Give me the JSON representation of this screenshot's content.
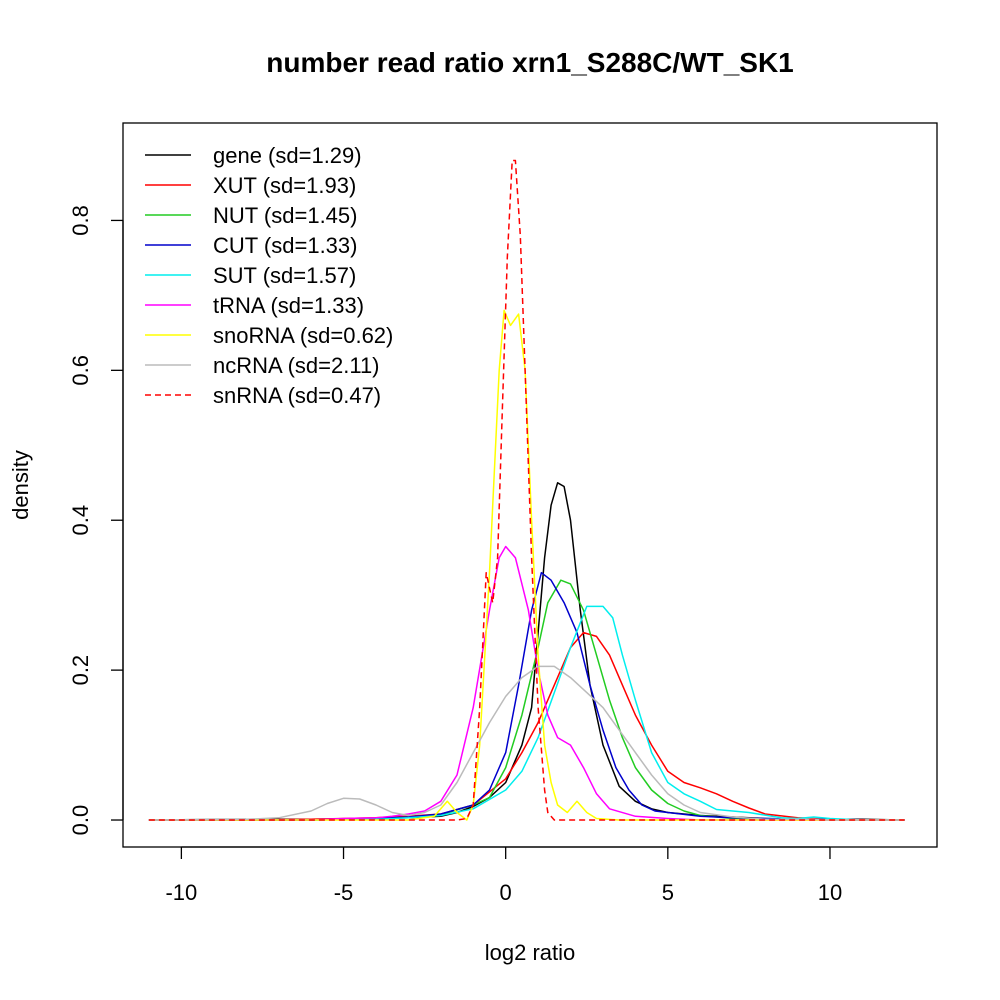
{
  "chart_data": {
    "type": "line",
    "title": "number read ratio xrn1_S288C/WT_SK1",
    "xlabel": "log2 ratio",
    "ylabel": "density",
    "xlim": [
      -11.8,
      13.3
    ],
    "ylim": [
      -0.036,
      0.93
    ],
    "xticks": [
      -10,
      -5,
      0,
      5,
      10
    ],
    "xtick_labels": [
      "-10",
      "-5",
      "0",
      "5",
      "10"
    ],
    "yticks": [
      0.0,
      0.2,
      0.4,
      0.6,
      0.8
    ],
    "ytick_labels": [
      "0.0",
      "0.2",
      "0.4",
      "0.6",
      "0.8"
    ],
    "grid": false,
    "legend_position": "top-left",
    "series": [
      {
        "name": "gene (sd=1.29)",
        "color": "#000000",
        "dash": false,
        "points": [
          [
            -11,
            0
          ],
          [
            -8,
            0.001
          ],
          [
            -6,
            0.001
          ],
          [
            -4,
            0.002
          ],
          [
            -3,
            0.003
          ],
          [
            -2,
            0.005
          ],
          [
            -1.5,
            0.01
          ],
          [
            -1,
            0.018
          ],
          [
            -0.5,
            0.03
          ],
          [
            0,
            0.05
          ],
          [
            0.5,
            0.1
          ],
          [
            0.8,
            0.15
          ],
          [
            1.0,
            0.25
          ],
          [
            1.2,
            0.35
          ],
          [
            1.4,
            0.42
          ],
          [
            1.6,
            0.45
          ],
          [
            1.8,
            0.445
          ],
          [
            2.0,
            0.4
          ],
          [
            2.3,
            0.28
          ],
          [
            2.6,
            0.18
          ],
          [
            3.0,
            0.1
          ],
          [
            3.5,
            0.045
          ],
          [
            4.0,
            0.025
          ],
          [
            4.5,
            0.015
          ],
          [
            5.0,
            0.01
          ],
          [
            6,
            0.006
          ],
          [
            7,
            0.004
          ],
          [
            8,
            0.002
          ],
          [
            9,
            0.001
          ],
          [
            11,
            0.001
          ],
          [
            12.3,
            0
          ]
        ]
      },
      {
        "name": "XUT (sd=1.93)",
        "color": "#ff0000",
        "dash": false,
        "points": [
          [
            -11,
            0
          ],
          [
            -8,
            0
          ],
          [
            -6,
            0.001
          ],
          [
            -4,
            0.003
          ],
          [
            -3,
            0.005
          ],
          [
            -2,
            0.008
          ],
          [
            -1,
            0.02
          ],
          [
            0,
            0.055
          ],
          [
            0.5,
            0.09
          ],
          [
            1.0,
            0.13
          ],
          [
            1.5,
            0.18
          ],
          [
            2.0,
            0.23
          ],
          [
            2.4,
            0.25
          ],
          [
            2.8,
            0.245
          ],
          [
            3.2,
            0.22
          ],
          [
            3.6,
            0.18
          ],
          [
            4.0,
            0.14
          ],
          [
            4.5,
            0.1
          ],
          [
            5.0,
            0.065
          ],
          [
            5.5,
            0.05
          ],
          [
            6.0,
            0.043
          ],
          [
            6.5,
            0.035
          ],
          [
            7.0,
            0.025
          ],
          [
            7.5,
            0.016
          ],
          [
            8.0,
            0.008
          ],
          [
            9,
            0.003
          ],
          [
            10,
            0.001
          ],
          [
            11,
            0
          ],
          [
            12.3,
            0
          ]
        ]
      },
      {
        "name": "NUT (sd=1.45)",
        "color": "#22cc22",
        "dash": false,
        "points": [
          [
            -11,
            0
          ],
          [
            -6,
            0
          ],
          [
            -4,
            0.002
          ],
          [
            -3,
            0.004
          ],
          [
            -2,
            0.007
          ],
          [
            -1,
            0.02
          ],
          [
            -0.5,
            0.03
          ],
          [
            0,
            0.07
          ],
          [
            0.5,
            0.14
          ],
          [
            1.0,
            0.23
          ],
          [
            1.3,
            0.29
          ],
          [
            1.7,
            0.32
          ],
          [
            2.0,
            0.315
          ],
          [
            2.4,
            0.28
          ],
          [
            2.8,
            0.22
          ],
          [
            3.2,
            0.16
          ],
          [
            3.6,
            0.11
          ],
          [
            4.0,
            0.07
          ],
          [
            4.5,
            0.04
          ],
          [
            5.0,
            0.022
          ],
          [
            5.5,
            0.012
          ],
          [
            6,
            0.006
          ],
          [
            7,
            0.002
          ],
          [
            8,
            0.001
          ],
          [
            9,
            0.001
          ],
          [
            10,
            0
          ],
          [
            12.3,
            0
          ]
        ]
      },
      {
        "name": "CUT (sd=1.33)",
        "color": "#0000cc",
        "dash": false,
        "points": [
          [
            -11,
            0
          ],
          [
            -6,
            0
          ],
          [
            -4,
            0.002
          ],
          [
            -3,
            0.004
          ],
          [
            -2,
            0.008
          ],
          [
            -1,
            0.02
          ],
          [
            -0.5,
            0.04
          ],
          [
            0,
            0.09
          ],
          [
            0.4,
            0.18
          ],
          [
            0.8,
            0.28
          ],
          [
            1.1,
            0.33
          ],
          [
            1.4,
            0.32
          ],
          [
            1.8,
            0.29
          ],
          [
            2.2,
            0.25
          ],
          [
            2.6,
            0.18
          ],
          [
            3.0,
            0.12
          ],
          [
            3.4,
            0.07
          ],
          [
            3.8,
            0.04
          ],
          [
            4.2,
            0.02
          ],
          [
            4.6,
            0.012
          ],
          [
            5.0,
            0.01
          ],
          [
            6,
            0.005
          ],
          [
            7,
            0.003
          ],
          [
            8,
            0.002
          ],
          [
            9,
            0.001
          ],
          [
            12.3,
            0
          ]
        ]
      },
      {
        "name": "SUT (sd=1.57)",
        "color": "#00eeee",
        "dash": false,
        "points": [
          [
            -11,
            0
          ],
          [
            -6,
            0
          ],
          [
            -4,
            0.001
          ],
          [
            -3,
            0.003
          ],
          [
            -2,
            0.006
          ],
          [
            -1,
            0.015
          ],
          [
            0,
            0.04
          ],
          [
            0.5,
            0.065
          ],
          [
            1.0,
            0.11
          ],
          [
            1.5,
            0.17
          ],
          [
            2.0,
            0.23
          ],
          [
            2.5,
            0.285
          ],
          [
            3.0,
            0.285
          ],
          [
            3.3,
            0.27
          ],
          [
            3.6,
            0.22
          ],
          [
            4.0,
            0.16
          ],
          [
            4.5,
            0.09
          ],
          [
            5.0,
            0.05
          ],
          [
            5.5,
            0.035
          ],
          [
            6.0,
            0.025
          ],
          [
            6.5,
            0.014
          ],
          [
            7.5,
            0.01
          ],
          [
            8.5,
            0.003
          ],
          [
            9.0,
            0.002
          ],
          [
            9.5,
            0.004
          ],
          [
            10,
            0.002
          ],
          [
            11,
            0
          ],
          [
            12.3,
            0
          ]
        ]
      },
      {
        "name": "tRNA (sd=1.33)",
        "color": "#ff00ff",
        "dash": false,
        "points": [
          [
            -11,
            0
          ],
          [
            -6,
            0
          ],
          [
            -5,
            0.002
          ],
          [
            -4,
            0.003
          ],
          [
            -3.5,
            0.005
          ],
          [
            -3,
            0.008
          ],
          [
            -2.5,
            0.012
          ],
          [
            -2,
            0.025
          ],
          [
            -1.5,
            0.06
          ],
          [
            -1,
            0.15
          ],
          [
            -0.5,
            0.28
          ],
          [
            -0.2,
            0.35
          ],
          [
            0,
            0.365
          ],
          [
            0.3,
            0.35
          ],
          [
            0.7,
            0.28
          ],
          [
            1.0,
            0.2
          ],
          [
            1.3,
            0.14
          ],
          [
            1.6,
            0.11
          ],
          [
            2.0,
            0.1
          ],
          [
            2.4,
            0.07
          ],
          [
            2.8,
            0.035
          ],
          [
            3.2,
            0.015
          ],
          [
            4,
            0.005
          ],
          [
            5,
            0.002
          ],
          [
            6,
            0
          ],
          [
            12.3,
            0
          ]
        ]
      },
      {
        "name": "snoRNA (sd=0.62)",
        "color": "#ffff00",
        "dash": false,
        "points": [
          [
            -11,
            0
          ],
          [
            -3,
            0
          ],
          [
            -2.2,
            0.005
          ],
          [
            -1.8,
            0.025
          ],
          [
            -1.5,
            0.01
          ],
          [
            -1.2,
            0.0
          ],
          [
            -1.0,
            0.02
          ],
          [
            -0.8,
            0.1
          ],
          [
            -0.5,
            0.33
          ],
          [
            -0.2,
            0.6
          ],
          [
            -0.05,
            0.68
          ],
          [
            0.15,
            0.66
          ],
          [
            0.4,
            0.675
          ],
          [
            0.6,
            0.6
          ],
          [
            0.8,
            0.4
          ],
          [
            1.0,
            0.22
          ],
          [
            1.2,
            0.1
          ],
          [
            1.4,
            0.05
          ],
          [
            1.6,
            0.02
          ],
          [
            1.9,
            0.01
          ],
          [
            2.2,
            0.025
          ],
          [
            2.5,
            0.01
          ],
          [
            2.8,
            0.002
          ],
          [
            3.5,
            0
          ],
          [
            12.3,
            0
          ]
        ]
      },
      {
        "name": "ncRNA (sd=2.11)",
        "color": "#bbbbbb",
        "dash": false,
        "points": [
          [
            -11,
            0
          ],
          [
            -8,
            0.001
          ],
          [
            -7,
            0.003
          ],
          [
            -6,
            0.012
          ],
          [
            -5.5,
            0.022
          ],
          [
            -5,
            0.029
          ],
          [
            -4.5,
            0.028
          ],
          [
            -4,
            0.02
          ],
          [
            -3.5,
            0.01
          ],
          [
            -3,
            0.006
          ],
          [
            -2.5,
            0.01
          ],
          [
            -2,
            0.02
          ],
          [
            -1.5,
            0.05
          ],
          [
            -1,
            0.09
          ],
          [
            -0.5,
            0.13
          ],
          [
            0,
            0.165
          ],
          [
            0.5,
            0.19
          ],
          [
            1.0,
            0.205
          ],
          [
            1.5,
            0.205
          ],
          [
            2.0,
            0.19
          ],
          [
            2.5,
            0.17
          ],
          [
            3.0,
            0.15
          ],
          [
            3.5,
            0.12
          ],
          [
            4.0,
            0.09
          ],
          [
            4.5,
            0.06
          ],
          [
            5.0,
            0.035
          ],
          [
            5.5,
            0.02
          ],
          [
            6,
            0.01
          ],
          [
            7,
            0.004
          ],
          [
            8,
            0.001
          ],
          [
            9.5,
            0.001
          ],
          [
            10,
            0
          ],
          [
            12.3,
            0
          ]
        ]
      },
      {
        "name": "snRNA (sd=0.47)",
        "color": "#ff0000",
        "dash": true,
        "points": [
          [
            -11,
            0
          ],
          [
            -1.5,
            0
          ],
          [
            -1.2,
            0.002
          ],
          [
            -1.0,
            0.02
          ],
          [
            -0.8,
            0.15
          ],
          [
            -0.6,
            0.33
          ],
          [
            -0.4,
            0.29
          ],
          [
            -0.25,
            0.35
          ],
          [
            -0.1,
            0.55
          ],
          [
            0.05,
            0.75
          ],
          [
            0.2,
            0.88
          ],
          [
            0.3,
            0.88
          ],
          [
            0.45,
            0.78
          ],
          [
            0.6,
            0.6
          ],
          [
            0.8,
            0.35
          ],
          [
            1.0,
            0.15
          ],
          [
            1.2,
            0.04
          ],
          [
            1.3,
            0.01
          ],
          [
            1.5,
            0
          ],
          [
            12.3,
            0
          ]
        ]
      }
    ]
  }
}
